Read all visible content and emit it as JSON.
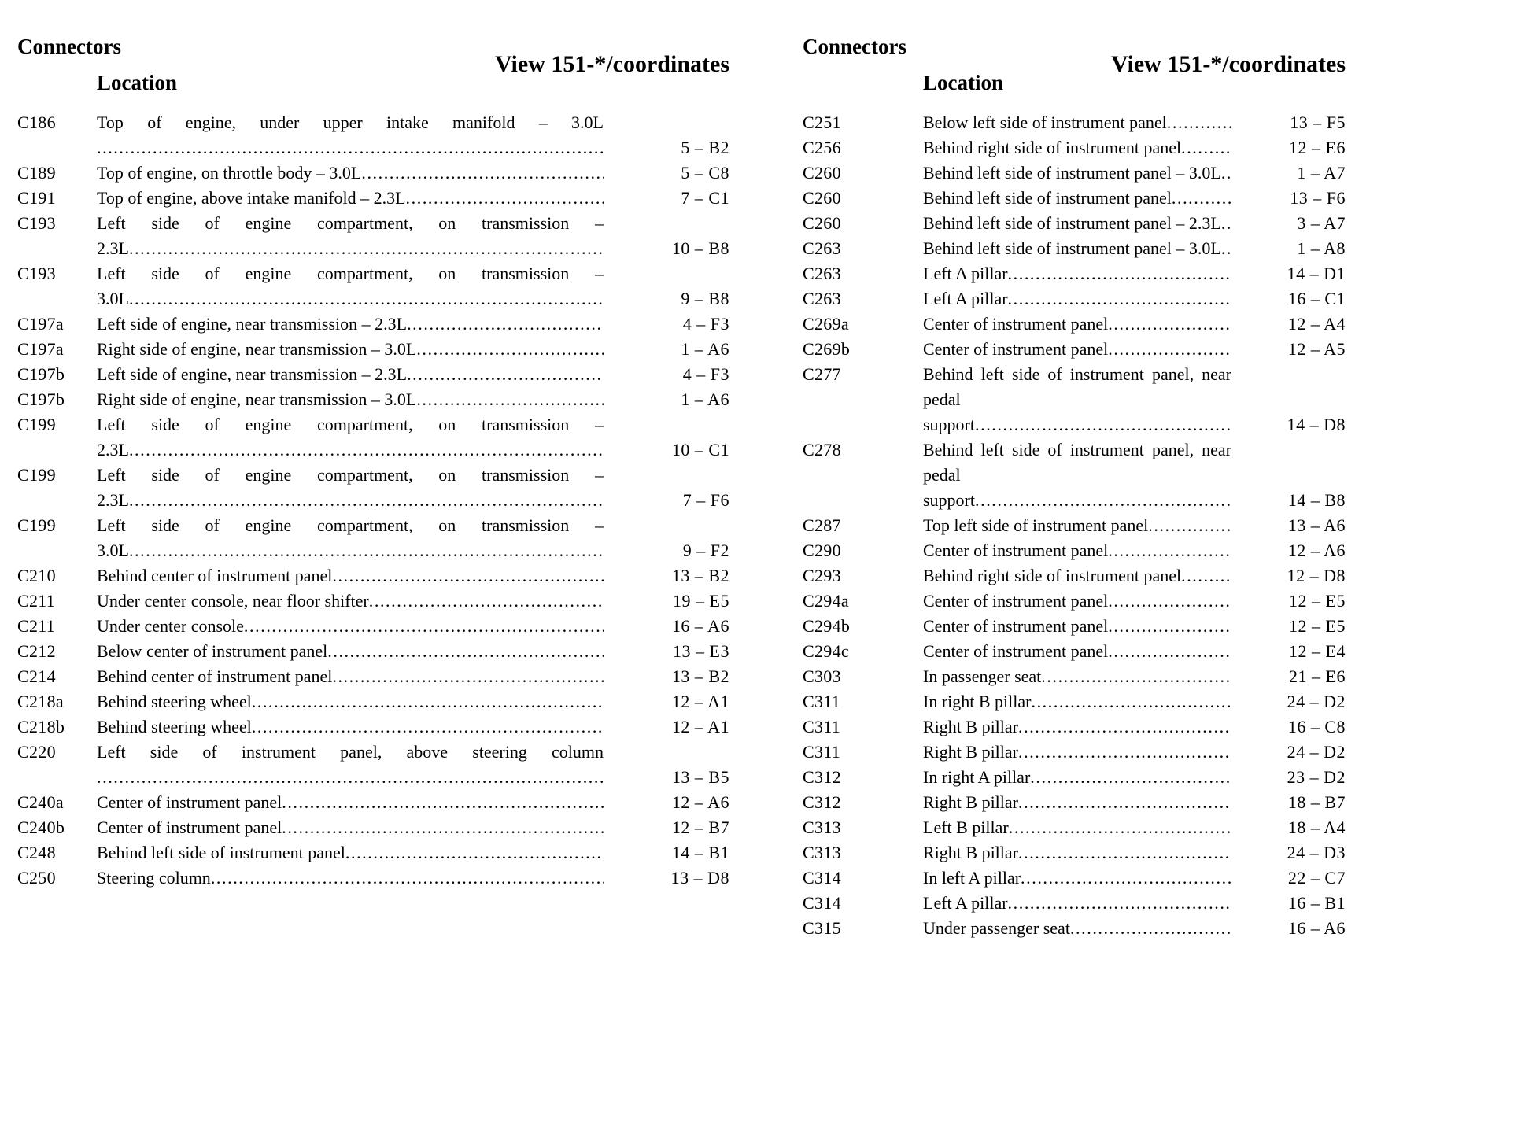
{
  "page": {
    "background": "#ffffff",
    "text_color": "#000000"
  },
  "columns": [
    {
      "header": {
        "connectors": "Connectors",
        "view": "View 151-*/coordinates",
        "location": "Location"
      },
      "entries": [
        {
          "id": "C186",
          "location_lines": [
            "Top of engine, under upper intake manifold – 3.0L",
            ""
          ],
          "coord": "5 – B2"
        },
        {
          "id": "C189",
          "location_lines": [
            "Top of engine, on throttle body – 3.0L"
          ],
          "coord": "5 – C8"
        },
        {
          "id": "C191",
          "location_lines": [
            "Top of engine, above intake manifold – 2.3L"
          ],
          "coord": "7 – C1"
        },
        {
          "id": "C193",
          "location_lines": [
            "Left side of engine compartment, on transmission –",
            "2.3L"
          ],
          "coord": "10 – B8"
        },
        {
          "id": "C193",
          "location_lines": [
            "Left side of engine compartment, on transmission –",
            "3.0L"
          ],
          "coord": "9 – B8"
        },
        {
          "id": "C197a",
          "location_lines": [
            "Left side of engine, near transmission – 2.3L"
          ],
          "coord": "4 – F3"
        },
        {
          "id": "C197a",
          "location_lines": [
            "Right side of engine, near transmission – 3.0L"
          ],
          "coord": "1 – A6"
        },
        {
          "id": "C197b",
          "location_lines": [
            "Left side of engine, near transmission – 2.3L"
          ],
          "coord": "4 – F3"
        },
        {
          "id": "C197b",
          "location_lines": [
            "Right side of engine, near transmission – 3.0L"
          ],
          "coord": "1 – A6"
        },
        {
          "id": "C199",
          "location_lines": [
            "Left side of engine compartment, on transmission –",
            "2.3L"
          ],
          "coord": "10 – C1"
        },
        {
          "id": "C199",
          "location_lines": [
            "Left side of engine compartment, on transmission –",
            "2.3L"
          ],
          "coord": "7 – F6"
        },
        {
          "id": "C199",
          "location_lines": [
            "Left side of engine compartment, on transmission –",
            "3.0L"
          ],
          "coord": "9 – F2"
        },
        {
          "id": "C210",
          "location_lines": [
            "Behind center of instrument panel"
          ],
          "coord": "13 – B2"
        },
        {
          "id": "C211",
          "location_lines": [
            "Under center console, near floor shifter"
          ],
          "coord": "19 – E5"
        },
        {
          "id": "C211",
          "location_lines": [
            "Under center console"
          ],
          "coord": "16 – A6"
        },
        {
          "id": "C212",
          "location_lines": [
            "Below center of instrument panel"
          ],
          "coord": "13 – E3"
        },
        {
          "id": "C214",
          "location_lines": [
            "Behind center of instrument panel"
          ],
          "coord": "13 – B2"
        },
        {
          "id": "C218a",
          "location_lines": [
            "Behind steering wheel"
          ],
          "coord": "12 – A1"
        },
        {
          "id": "C218b",
          "location_lines": [
            "Behind steering wheel"
          ],
          "coord": "12 – A1"
        },
        {
          "id": "C220",
          "location_lines": [
            "Left side of instrument panel, above steering column",
            ""
          ],
          "coord": "13 – B5"
        },
        {
          "id": "C240a",
          "location_lines": [
            "Center of instrument panel"
          ],
          "coord": "12 – A6"
        },
        {
          "id": "C240b",
          "location_lines": [
            "Center of instrument panel"
          ],
          "coord": "12 – B7"
        },
        {
          "id": "C248",
          "location_lines": [
            "Behind left side of instrument panel"
          ],
          "coord": "14 – B1"
        },
        {
          "id": "C250",
          "location_lines": [
            "Steering column"
          ],
          "coord": "13 – D8"
        }
      ]
    },
    {
      "header": {
        "connectors": "Connectors",
        "view": "View 151-*/coordinates",
        "location": "Location"
      },
      "entries": [
        {
          "id": "C251",
          "location_lines": [
            "Below left side of instrument panel"
          ],
          "coord": "13 – F5"
        },
        {
          "id": "C256",
          "location_lines": [
            "Behind right side of instrument panel"
          ],
          "coord": "12 – E6"
        },
        {
          "id": "C260",
          "location_lines": [
            "Behind left side of instrument panel – 3.0L"
          ],
          "coord": "1 – A7"
        },
        {
          "id": "C260",
          "location_lines": [
            "Behind left side of instrument panel"
          ],
          "coord": "13 – F6"
        },
        {
          "id": "C260",
          "location_lines": [
            "Behind left side of instrument panel – 2.3L"
          ],
          "coord": "3 – A7"
        },
        {
          "id": "C263",
          "location_lines": [
            "Behind left side of instrument panel – 3.0L"
          ],
          "coord": "1 – A8"
        },
        {
          "id": "C263",
          "location_lines": [
            "Left A pillar"
          ],
          "coord": "14 – D1"
        },
        {
          "id": "C263",
          "location_lines": [
            "Left A pillar"
          ],
          "coord": "16 – C1"
        },
        {
          "id": "C269a",
          "location_lines": [
            "Center of instrument panel"
          ],
          "coord": "12 – A4"
        },
        {
          "id": "C269b",
          "location_lines": [
            "Center of instrument panel"
          ],
          "coord": "12 – A5"
        },
        {
          "id": "C277",
          "location_lines": [
            "Behind left side of instrument panel, near pedal",
            "support"
          ],
          "coord": "14 – D8"
        },
        {
          "id": "C278",
          "location_lines": [
            "Behind left side of instrument panel, near pedal",
            "support"
          ],
          "coord": "14 – B8"
        },
        {
          "id": "C287",
          "location_lines": [
            "Top left side of instrument panel"
          ],
          "coord": "13 – A6"
        },
        {
          "id": "C290",
          "location_lines": [
            "Center of instrument panel"
          ],
          "coord": "12 – A6"
        },
        {
          "id": "C293",
          "location_lines": [
            "Behind right side of instrument panel"
          ],
          "coord": "12 – D8"
        },
        {
          "id": "C294a",
          "location_lines": [
            "Center of instrument panel"
          ],
          "coord": "12 – E5"
        },
        {
          "id": "C294b",
          "location_lines": [
            "Center of instrument panel"
          ],
          "coord": "12 – E5"
        },
        {
          "id": "C294c",
          "location_lines": [
            "Center of instrument panel"
          ],
          "coord": "12 – E4"
        },
        {
          "id": "C303",
          "location_lines": [
            "In passenger seat"
          ],
          "coord": "21 – E6"
        },
        {
          "id": "C311",
          "location_lines": [
            "In right B pillar"
          ],
          "coord": "24 – D2"
        },
        {
          "id": "C311",
          "location_lines": [
            "Right B pillar"
          ],
          "coord": "16 – C8"
        },
        {
          "id": "C311",
          "location_lines": [
            "Right B pillar"
          ],
          "coord": "24 – D2"
        },
        {
          "id": "C312",
          "location_lines": [
            "In right A pillar"
          ],
          "coord": "23 – D2"
        },
        {
          "id": "C312",
          "location_lines": [
            "Right B pillar"
          ],
          "coord": "18 – B7"
        },
        {
          "id": "C313",
          "location_lines": [
            "Left B pillar"
          ],
          "coord": "18 – A4"
        },
        {
          "id": "C313",
          "location_lines": [
            "Right B pillar"
          ],
          "coord": "24 – D3"
        },
        {
          "id": "C314",
          "location_lines": [
            "In left A pillar"
          ],
          "coord": "22 – C7"
        },
        {
          "id": "C314",
          "location_lines": [
            "Left A pillar"
          ],
          "coord": "16 – B1"
        },
        {
          "id": "C315",
          "location_lines": [
            "Under passenger seat"
          ],
          "coord": "16 – A6"
        }
      ]
    }
  ]
}
